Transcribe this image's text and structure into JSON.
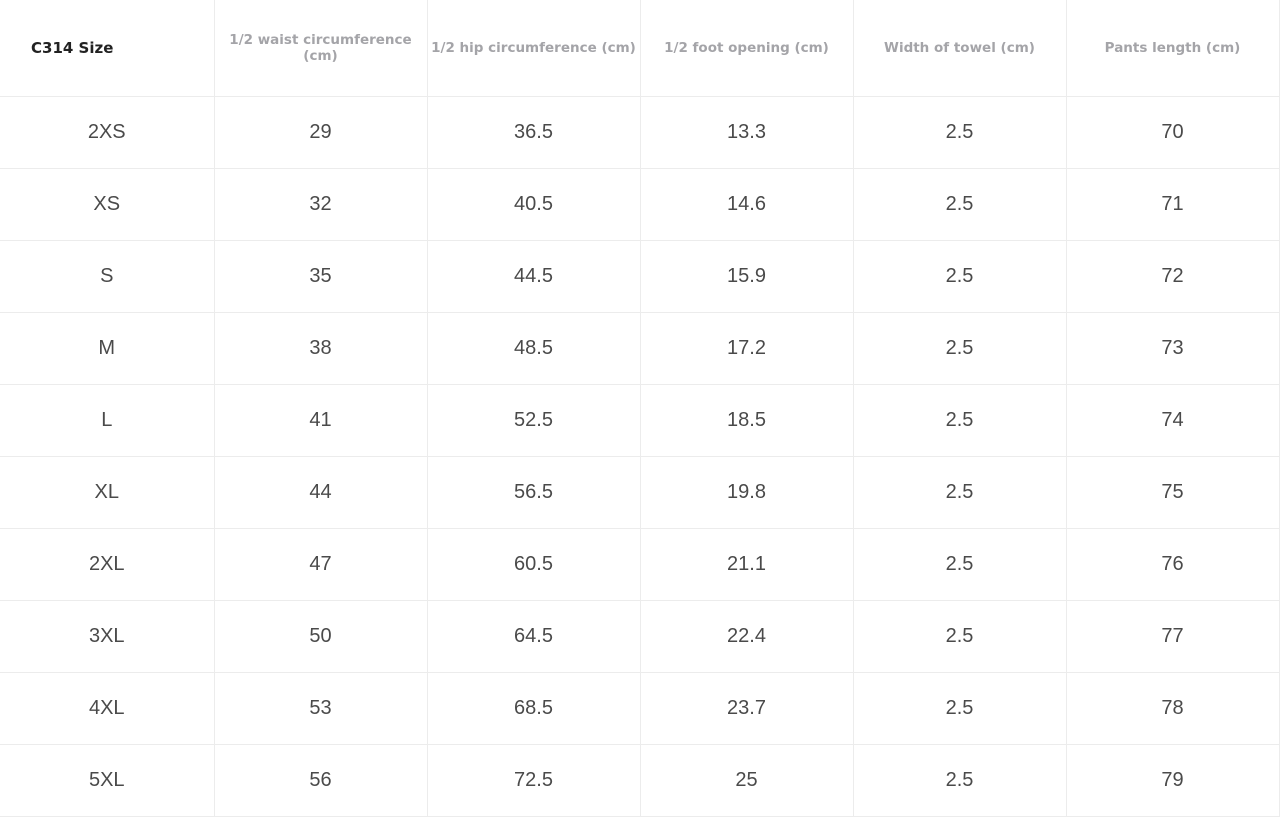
{
  "table": {
    "header": [
      "C314 Size",
      "1/2 waist circumference (cm)",
      "1/2 hip circumference (cm)",
      "1/2 foot opening (cm)",
      "Width of towel (cm)",
      "Pants length (cm)"
    ],
    "rows": [
      [
        "2XS",
        29,
        36.5,
        13.3,
        2.5,
        70
      ],
      [
        "XS",
        32,
        40.5,
        14.6,
        2.5,
        71
      ],
      [
        "S",
        35,
        44.5,
        15.9,
        2.5,
        72
      ],
      [
        "M",
        38,
        48.5,
        17.2,
        2.5,
        73
      ],
      [
        "L",
        41,
        52.5,
        18.5,
        2.5,
        74
      ],
      [
        "XL",
        44,
        56.5,
        19.8,
        2.5,
        75
      ],
      [
        "2XL",
        47,
        60.5,
        21.1,
        2.5,
        76
      ],
      [
        "3XL",
        50,
        64.5,
        22.4,
        2.5,
        77
      ],
      [
        "4XL",
        53,
        68.5,
        23.7,
        2.5,
        78
      ],
      [
        "5XL",
        56,
        72.5,
        25,
        2.5,
        79
      ]
    ]
  }
}
